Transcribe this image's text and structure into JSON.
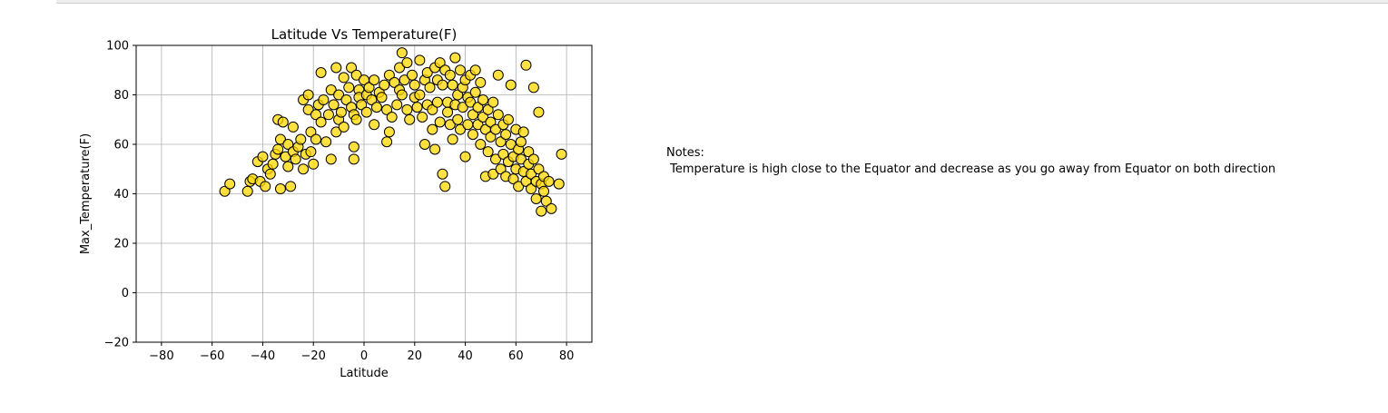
{
  "notes": {
    "heading": "Notes:",
    "text": " Temperature is high close to the Equator and decrease as you go away from Equator on both direction"
  },
  "colors": {
    "marker_fill": "#ffd700",
    "marker_edge": "#000000",
    "grid": "#b0b0b0"
  },
  "chart_data": {
    "type": "scatter",
    "title": "Latitude Vs Temperature(F)",
    "xlabel": "Latitude",
    "ylabel": "Max_Temperature(F)",
    "xlim": [
      -90,
      90
    ],
    "ylim": [
      -20,
      100
    ],
    "xticks": [
      -80,
      -60,
      -40,
      -20,
      0,
      20,
      40,
      60,
      80
    ],
    "yticks": [
      -20,
      0,
      20,
      40,
      60,
      80,
      100
    ],
    "grid": true,
    "legend": "none",
    "points": [
      [
        -55,
        41
      ],
      [
        -53,
        44
      ],
      [
        -46,
        41
      ],
      [
        -45,
        45
      ],
      [
        -44,
        46
      ],
      [
        -42,
        53
      ],
      [
        -41,
        45
      ],
      [
        -40,
        55
      ],
      [
        -39,
        43
      ],
      [
        -38,
        50
      ],
      [
        -37,
        48
      ],
      [
        -36,
        52
      ],
      [
        -35,
        56
      ],
      [
        -34,
        70
      ],
      [
        -34,
        58
      ],
      [
        -33,
        62
      ],
      [
        -33,
        42
      ],
      [
        -32,
        69
      ],
      [
        -31,
        55
      ],
      [
        -30,
        60
      ],
      [
        -30,
        51
      ],
      [
        -29,
        43
      ],
      [
        -28,
        57
      ],
      [
        -28,
        67
      ],
      [
        -27,
        54
      ],
      [
        -26,
        59
      ],
      [
        -25,
        62
      ],
      [
        -24,
        78
      ],
      [
        -24,
        50
      ],
      [
        -23,
        56
      ],
      [
        -22,
        80
      ],
      [
        -22,
        74
      ],
      [
        -21,
        65
      ],
      [
        -21,
        57
      ],
      [
        -20,
        52
      ],
      [
        -19,
        72
      ],
      [
        -19,
        62
      ],
      [
        -18,
        76
      ],
      [
        -17,
        89
      ],
      [
        -17,
        69
      ],
      [
        -16,
        78
      ],
      [
        -15,
        61
      ],
      [
        -14,
        72
      ],
      [
        -13,
        54
      ],
      [
        -13,
        82
      ],
      [
        -12,
        76
      ],
      [
        -11,
        91
      ],
      [
        -11,
        65
      ],
      [
        -10,
        70
      ],
      [
        -10,
        80
      ],
      [
        -9,
        73
      ],
      [
        -8,
        87
      ],
      [
        -8,
        67
      ],
      [
        -7,
        78
      ],
      [
        -6,
        83
      ],
      [
        -5,
        91
      ],
      [
        -5,
        75
      ],
      [
        -4,
        72
      ],
      [
        -4,
        59
      ],
      [
        -4,
        54
      ],
      [
        -3,
        88
      ],
      [
        -3,
        70
      ],
      [
        -2,
        82
      ],
      [
        -2,
        79
      ],
      [
        -1,
        76
      ],
      [
        0,
        86
      ],
      [
        1,
        80
      ],
      [
        1,
        73
      ],
      [
        2,
        83
      ],
      [
        3,
        78
      ],
      [
        4,
        86
      ],
      [
        4,
        68
      ],
      [
        5,
        75
      ],
      [
        6,
        81
      ],
      [
        7,
        79
      ],
      [
        8,
        84
      ],
      [
        9,
        74
      ],
      [
        9,
        61
      ],
      [
        10,
        88
      ],
      [
        10,
        65
      ],
      [
        11,
        71
      ],
      [
        12,
        85
      ],
      [
        13,
        76
      ],
      [
        14,
        91
      ],
      [
        14,
        82
      ],
      [
        15,
        97
      ],
      [
        15,
        80
      ],
      [
        16,
        86
      ],
      [
        17,
        93
      ],
      [
        17,
        74
      ],
      [
        18,
        70
      ],
      [
        19,
        88
      ],
      [
        20,
        79
      ],
      [
        20,
        84
      ],
      [
        21,
        75
      ],
      [
        22,
        94
      ],
      [
        22,
        80
      ],
      [
        23,
        71
      ],
      [
        24,
        86
      ],
      [
        24,
        60
      ],
      [
        25,
        89
      ],
      [
        25,
        76
      ],
      [
        26,
        83
      ],
      [
        27,
        74
      ],
      [
        27,
        66
      ],
      [
        28,
        91
      ],
      [
        28,
        58
      ],
      [
        29,
        86
      ],
      [
        29,
        77
      ],
      [
        30,
        93
      ],
      [
        30,
        69
      ],
      [
        31,
        48
      ],
      [
        31,
        84
      ],
      [
        32,
        43
      ],
      [
        32,
        90
      ],
      [
        33,
        77
      ],
      [
        33,
        73
      ],
      [
        34,
        88
      ],
      [
        34,
        68
      ],
      [
        35,
        84
      ],
      [
        35,
        62
      ],
      [
        36,
        95
      ],
      [
        36,
        76
      ],
      [
        37,
        80
      ],
      [
        37,
        70
      ],
      [
        38,
        90
      ],
      [
        38,
        66
      ],
      [
        39,
        83
      ],
      [
        39,
        75
      ],
      [
        40,
        86
      ],
      [
        40,
        55
      ],
      [
        41,
        79
      ],
      [
        41,
        68
      ],
      [
        42,
        77
      ],
      [
        42,
        88
      ],
      [
        43,
        72
      ],
      [
        43,
        64
      ],
      [
        44,
        90
      ],
      [
        44,
        81
      ],
      [
        45,
        75
      ],
      [
        45,
        68
      ],
      [
        46,
        85
      ],
      [
        46,
        60
      ],
      [
        47,
        71
      ],
      [
        47,
        78
      ],
      [
        48,
        66
      ],
      [
        48,
        47
      ],
      [
        49,
        74
      ],
      [
        49,
        57
      ],
      [
        50,
        69
      ],
      [
        50,
        63
      ],
      [
        51,
        77
      ],
      [
        51,
        48
      ],
      [
        52,
        66
      ],
      [
        52,
        54
      ],
      [
        53,
        72
      ],
      [
        53,
        88
      ],
      [
        54,
        61
      ],
      [
        54,
        50
      ],
      [
        55,
        68
      ],
      [
        55,
        56
      ],
      [
        56,
        64
      ],
      [
        56,
        47
      ],
      [
        57,
        70
      ],
      [
        57,
        53
      ],
      [
        58,
        60
      ],
      [
        58,
        84
      ],
      [
        59,
        55
      ],
      [
        59,
        46
      ],
      [
        60,
        66
      ],
      [
        60,
        50
      ],
      [
        61,
        58
      ],
      [
        61,
        43
      ],
      [
        62,
        54
      ],
      [
        62,
        61
      ],
      [
        63,
        49
      ],
      [
        63,
        65
      ],
      [
        64,
        92
      ],
      [
        64,
        45
      ],
      [
        65,
        57
      ],
      [
        65,
        52
      ],
      [
        66,
        48
      ],
      [
        66,
        42
      ],
      [
        67,
        54
      ],
      [
        67,
        83
      ],
      [
        68,
        45
      ],
      [
        68,
        38
      ],
      [
        69,
        73
      ],
      [
        69,
        50
      ],
      [
        70,
        44
      ],
      [
        70,
        33
      ],
      [
        71,
        47
      ],
      [
        71,
        41
      ],
      [
        72,
        37
      ],
      [
        73,
        45
      ],
      [
        74,
        34
      ],
      [
        77,
        44
      ],
      [
        78,
        56
      ]
    ]
  }
}
